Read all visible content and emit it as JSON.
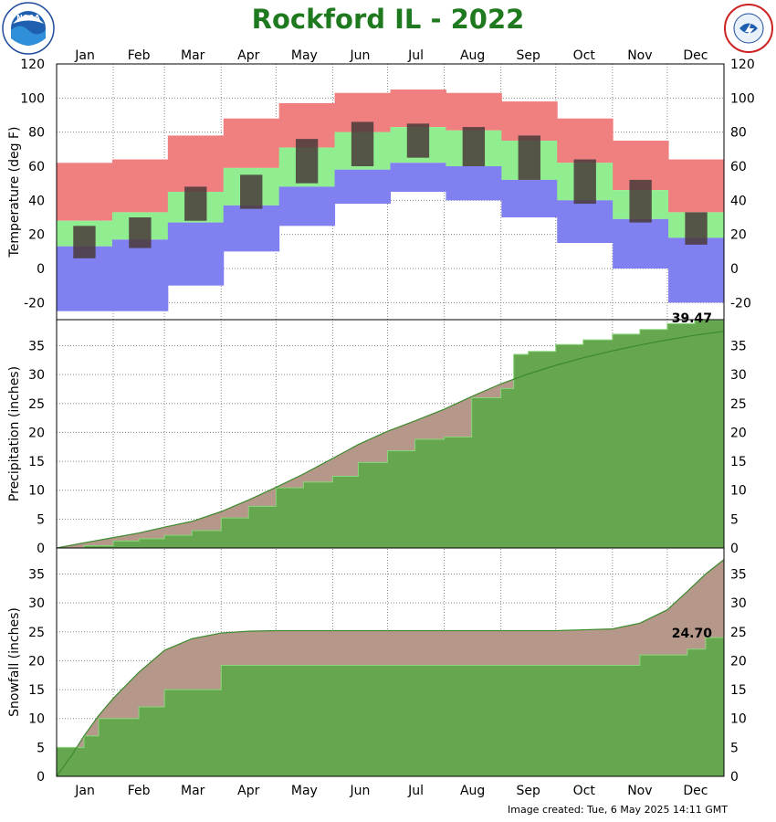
{
  "title": "Rockford IL - 2022",
  "credit": "Image created: Tue, 6 May 2025 14:11 GMT",
  "logos": {
    "left": "NOAA",
    "right": "NATIONAL WEATHER SERVICE"
  },
  "colors": {
    "title": "#1f7a1f",
    "record_high": "#f08080",
    "normal_band": "#90ee90",
    "record_low": "#8080f0",
    "observed_bar": "#4a3a3a",
    "accum_observed": "#66a64f",
    "accum_normal": "#b5988a",
    "accum_above_normal": "#88d67a",
    "grid": "#888888"
  },
  "chart_data": [
    {
      "type": "bar",
      "panel": "temperature",
      "ylabel": "Temperature (deg F)",
      "ylim": [
        -30,
        120
      ],
      "yticks": [
        -20,
        0,
        20,
        40,
        60,
        80,
        100,
        120
      ],
      "months": [
        "Jan",
        "Feb",
        "Mar",
        "Apr",
        "May",
        "Jun",
        "Jul",
        "Aug",
        "Sep",
        "Oct",
        "Nov",
        "Dec"
      ],
      "series": [
        {
          "name": "Record High",
          "monthly": [
            62,
            64,
            78,
            88,
            97,
            103,
            105,
            103,
            98,
            88,
            75,
            64
          ]
        },
        {
          "name": "Normal High",
          "monthly": [
            28,
            33,
            45,
            59,
            71,
            80,
            83,
            81,
            75,
            62,
            46,
            33
          ]
        },
        {
          "name": "Normal Low",
          "monthly": [
            13,
            17,
            27,
            37,
            48,
            58,
            62,
            60,
            52,
            40,
            29,
            18
          ]
        },
        {
          "name": "Record Low",
          "monthly": [
            -25,
            -25,
            -10,
            10,
            25,
            38,
            45,
            40,
            30,
            15,
            0,
            -20
          ]
        },
        {
          "name": "Observed High",
          "monthly": [
            25,
            30,
            48,
            55,
            76,
            86,
            85,
            83,
            78,
            64,
            52,
            33
          ]
        },
        {
          "name": "Observed Low",
          "monthly": [
            6,
            12,
            28,
            35,
            50,
            60,
            65,
            60,
            52,
            38,
            27,
            14
          ]
        }
      ]
    },
    {
      "type": "area",
      "panel": "precipitation",
      "ylabel": "Precipitation (inches)",
      "ylim": [
        0,
        40
      ],
      "yticks": [
        0,
        5,
        10,
        15,
        20,
        25,
        30,
        35
      ],
      "annotation": "39.47",
      "x_day": [
        0,
        15,
        31,
        45,
        59,
        74,
        90,
        105,
        120,
        135,
        151,
        165,
        181,
        196,
        212,
        227,
        243,
        250,
        258,
        273,
        288,
        304,
        319,
        334,
        349,
        365
      ],
      "series": [
        {
          "name": "Observed",
          "values": [
            0,
            0.4,
            1.2,
            1.6,
            2.2,
            3.0,
            5.2,
            7.2,
            10.4,
            11.4,
            12.4,
            14.8,
            16.8,
            18.8,
            19.2,
            26.0,
            27.6,
            33.5,
            34.0,
            35.2,
            36.0,
            37.0,
            37.8,
            38.8,
            39.4,
            39.47
          ]
        },
        {
          "name": "Normal",
          "values": [
            0,
            0.9,
            1.8,
            2.6,
            3.6,
            4.6,
            6.3,
            8.3,
            10.5,
            12.8,
            15.5,
            17.9,
            20.2,
            22.0,
            24.0,
            26.2,
            28.4,
            29.2,
            30.1,
            31.6,
            32.9,
            34.1,
            35.1,
            36.0,
            36.8,
            37.5
          ]
        }
      ]
    },
    {
      "type": "area",
      "panel": "snowfall",
      "ylabel": "Snowfall (inches)",
      "ylim": [
        0,
        40
      ],
      "yticks": [
        0,
        5,
        10,
        15,
        20,
        25,
        30,
        35
      ],
      "annotation": "24.70",
      "x_day": [
        0,
        8,
        15,
        23,
        31,
        45,
        59,
        74,
        90,
        105,
        120,
        181,
        243,
        273,
        304,
        319,
        334,
        345,
        355,
        365
      ],
      "series": [
        {
          "name": "Observed",
          "values": [
            5.0,
            5.0,
            7.0,
            10.0,
            10.0,
            12.0,
            15.0,
            15.0,
            19.2,
            19.2,
            19.2,
            19.2,
            19.2,
            19.2,
            19.2,
            21.0,
            21.0,
            22.0,
            24.0,
            24.7
          ]
        },
        {
          "name": "Normal",
          "values": [
            0,
            3.5,
            7.0,
            10.5,
            13.5,
            18.0,
            21.8,
            23.8,
            24.8,
            25.1,
            25.2,
            25.2,
            25.2,
            25.2,
            25.5,
            26.5,
            28.8,
            32.0,
            35.0,
            37.5
          ]
        }
      ]
    }
  ]
}
